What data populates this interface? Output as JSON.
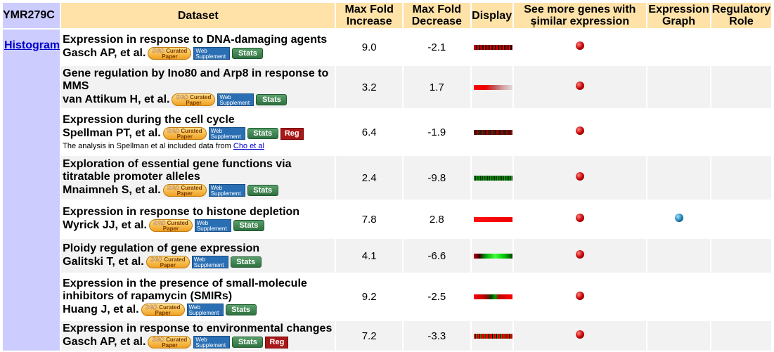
{
  "gene": "YMR279C",
  "histogram_link": "Histogram",
  "headers": {
    "dataset": "Dataset",
    "max_fold_increase": "Max Fold Increase",
    "max_fold_decrease": "Max Fold Decrease",
    "display": "Display",
    "see_more": "See more genes with similar expression",
    "expression_graph": "Expression Graph",
    "regulatory_role": "Regulatory Role"
  },
  "badges": {
    "sgd_top": "SGD",
    "sgd_curated": "Curated",
    "sgd_paper": "Paper",
    "web_top": "Web",
    "web_bottom": "Supplement",
    "stats": "Stats",
    "reg": "Reg"
  },
  "rows": [
    {
      "title": "Expression in response to DNA-damaging agents",
      "authors": "Gasch AP, et al.",
      "inc": "9.0",
      "dec": "-2.1",
      "has_reg": false,
      "has_graph": false
    },
    {
      "title": "Gene regulation by Ino80 and Arp8 in response to MMS",
      "authors": "van Attikum H, et al.",
      "inc": "3.2",
      "dec": "1.7",
      "has_reg": false,
      "has_graph": false
    },
    {
      "title": "Expression during the cell cycle",
      "authors": "Spellman PT, et al.",
      "inc": "6.4",
      "dec": "-1.9",
      "has_reg": true,
      "has_graph": false,
      "note": "The analysis in Spellman et al included data from ",
      "note_link": "Cho et al"
    },
    {
      "title": "Exploration of essential gene functions via titratable promoter alleles",
      "authors": "Mnaimneh S, et al.",
      "inc": "2.4",
      "dec": "-9.8",
      "has_reg": false,
      "has_graph": false
    },
    {
      "title": "Expression in response to histone depletion",
      "authors": "Wyrick JJ, et al.",
      "inc": "7.8",
      "dec": "2.8",
      "has_reg": false,
      "has_graph": true
    },
    {
      "title": "Ploidy regulation of gene expression",
      "authors": "Galitski T, et al.",
      "inc": "4.1",
      "dec": "-6.6",
      "has_reg": false,
      "has_graph": false
    },
    {
      "title": "Expression in the presence of small-molecule inhibitors of rapamycin (SMIRs)",
      "authors": "Huang J, et al.",
      "inc": "9.2",
      "dec": "-2.5",
      "has_reg": false,
      "has_graph": false
    },
    {
      "title": "Expression in response to environmental changes",
      "authors": "Gasch AP, et al.",
      "inc": "7.2",
      "dec": "-3.3",
      "has_reg": true,
      "has_graph": false
    }
  ],
  "colors": {
    "header_bg": "#ffe2a8",
    "side_bg": "#ccccff",
    "link": "#0000cc"
  }
}
